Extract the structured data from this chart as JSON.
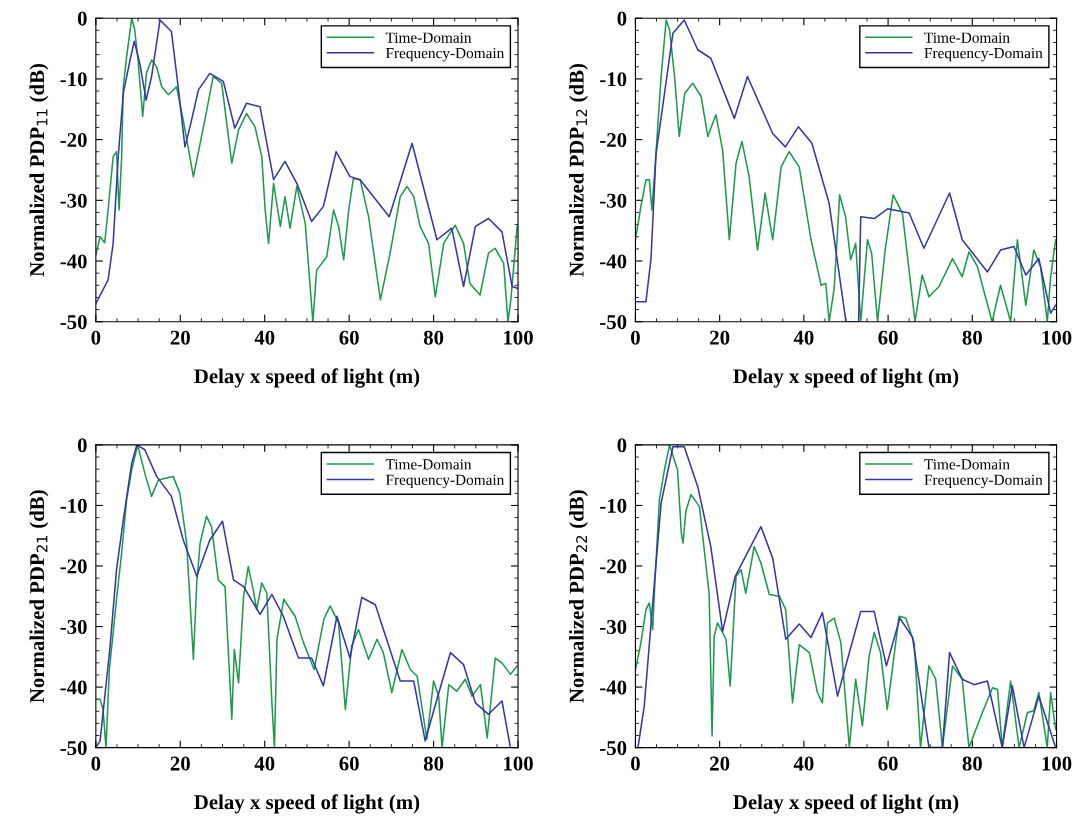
{
  "chart_data": [
    {
      "type": "line",
      "xlabel": "Delay x speed of light (m)",
      "ylabel": "Normalized PDP$_{11}$ (dB)",
      "xlim": [
        0,
        100
      ],
      "xticks": [
        0,
        20,
        40,
        60,
        80,
        100
      ],
      "ylim": [
        -50,
        0
      ],
      "yticks": [
        -50,
        -40,
        -30,
        -20,
        -10,
        0
      ],
      "legend": "top right",
      "grid": false,
      "series": [
        {
          "name": "Time-Domain",
          "color": "#1a9a4a",
          "x": [
            0,
            1,
            2.1,
            2.9,
            4.1,
            4.9,
            5.5,
            6.1,
            6.5,
            7.3,
            8.5,
            9.2,
            10,
            11.1,
            12,
            13.2,
            14.4,
            15.6,
            17.2,
            19.1,
            20.7,
            23.1,
            25.5,
            27.8,
            29.8,
            32.2,
            33.8,
            35.7,
            37.7,
            39.3,
            40.1,
            40.9,
            42.1,
            43.7,
            44.8,
            46,
            47.6,
            49.6,
            51.4,
            52.3,
            54.7,
            56.3,
            57.5,
            58.7,
            59.9,
            61,
            62.6,
            64.6,
            67.4,
            69.7,
            72.1,
            73.7,
            75.3,
            76.8,
            78.8,
            80.4,
            82.4,
            85.1,
            87.1,
            88.6,
            91,
            93,
            94.6,
            96.6,
            97.6,
            98.3,
            99.8
          ],
          "values": [
            -39,
            -36,
            -37,
            -31.6,
            -22.8,
            -22,
            -31.6,
            -23,
            -11.3,
            -6.3,
            0,
            -1.9,
            -6.9,
            -16.2,
            -9,
            -6.9,
            -8,
            -11.3,
            -12.6,
            -11.3,
            -16.8,
            -26.1,
            -17.9,
            -9.6,
            -10.7,
            -23.9,
            -18.4,
            -15.7,
            -17.9,
            -22.8,
            -31.6,
            -37.1,
            -27.2,
            -34.3,
            -29.4,
            -34.6,
            -27.7,
            -33.8,
            -50,
            -41.5,
            -39.3,
            -31.6,
            -34.3,
            -39.8,
            -31.6,
            -26.4,
            -26.6,
            -32.7,
            -46.4,
            -38.7,
            -29.4,
            -27.7,
            -29.4,
            -34.3,
            -37.1,
            -45.9,
            -37.1,
            -34.1,
            -37.1,
            -43.7,
            -45.6,
            -38.7,
            -37.9,
            -40.4,
            -50,
            -46.4,
            -34.3
          ]
        },
        {
          "name": "Frequency-Domain",
          "color": "#3535a5",
          "x": [
            0,
            2.9,
            4.1,
            5.3,
            6.5,
            8.1,
            9.1,
            10.4,
            11.9,
            13.2,
            15.2,
            17.9,
            19.5,
            21.1,
            22.3,
            24.3,
            27,
            30.2,
            32.9,
            35.7,
            38.9,
            42.1,
            44.8,
            47.6,
            51.1,
            53.9,
            56.9,
            60.2,
            62.6,
            69.5,
            74.9,
            80.8,
            84.3,
            87.1,
            89.9,
            93,
            96.2,
            98.6,
            99.9
          ],
          "values": [
            -47,
            -43.1,
            -37.1,
            -22.8,
            -12.4,
            -6.9,
            -3.8,
            -7.4,
            -13.5,
            -9.6,
            -0.3,
            -2.2,
            -11.3,
            -21.2,
            -17.9,
            -11.8,
            -9.1,
            -10.4,
            -18.1,
            -14,
            -14.6,
            -26.6,
            -23.6,
            -27.2,
            -33.5,
            -31,
            -22,
            -26.1,
            -26.6,
            -32.7,
            -20.6,
            -36.5,
            -34.6,
            -44.2,
            -34.3,
            -33,
            -35.2,
            -44.2,
            -44.5
          ]
        }
      ]
    },
    {
      "type": "line",
      "xlabel": "Delay x speed of light (m)",
      "ylabel": "Normalized PDP$_{12}$ (dB)",
      "xlim": [
        0,
        100
      ],
      "xticks": [
        0,
        20,
        40,
        60,
        80,
        100
      ],
      "ylim": [
        -50,
        0
      ],
      "yticks": [
        -50,
        -40,
        -30,
        -20,
        -10,
        0
      ],
      "legend": "top right",
      "grid": false,
      "series": [
        {
          "name": "Time-Domain",
          "color": "#1a9a4a",
          "x": [
            0,
            1.3,
            2.5,
            3.3,
            3.9,
            4.5,
            5.3,
            6.1,
            7.3,
            8.1,
            9.3,
            10.4,
            11.7,
            13.6,
            15.6,
            17.2,
            19.1,
            20.7,
            22.3,
            23.9,
            25.3,
            27,
            29,
            30.8,
            32.6,
            34.6,
            36.5,
            38.9,
            41.7,
            44.1,
            45.2,
            46,
            47.2,
            48.5,
            49.9,
            51.1,
            52.3,
            53.5,
            55.1,
            56.1,
            57.5,
            59.3,
            61.2,
            63.4,
            66.4,
            68.1,
            69.7,
            72.1,
            75.3,
            77.6,
            79.2,
            81.2,
            84.7,
            86.7,
            89.1,
            90.7,
            92.7,
            94.6,
            96.2,
            97.8,
            98.6,
            99.8
          ],
          "values": [
            -36.5,
            -31,
            -26.6,
            -26.6,
            -31.6,
            -26.1,
            -17.9,
            -9.6,
            -0.3,
            -1.9,
            -9.6,
            -19.5,
            -12.4,
            -10.7,
            -12.9,
            -19.5,
            -15.9,
            -21.7,
            -36.5,
            -23.9,
            -20.3,
            -26.1,
            -38.2,
            -28.8,
            -36.5,
            -24.5,
            -22,
            -24.5,
            -36.5,
            -44,
            -43.7,
            -50,
            -44.5,
            -29.1,
            -32.7,
            -39.8,
            -37.1,
            -50,
            -36.5,
            -38.7,
            -50,
            -38.2,
            -29.1,
            -32.1,
            -50,
            -42.3,
            -45.9,
            -44.2,
            -39.6,
            -42.6,
            -38.5,
            -40.9,
            -50,
            -44,
            -50,
            -36.5,
            -47.3,
            -38.2,
            -40.9,
            -50,
            -42.6,
            -36.5
          ]
        },
        {
          "name": "Frequency-Domain",
          "color": "#3535a5",
          "x": [
            0,
            2.5,
            3.7,
            4.9,
            8.9,
            11.6,
            14.8,
            17.9,
            23.5,
            26.6,
            32.6,
            35.6,
            38.7,
            41.9,
            46,
            50,
            53,
            53.5,
            56.7,
            59.9,
            65,
            68.5,
            74.6,
            77.6,
            83.6,
            86.7,
            89.9,
            92.7,
            95.8,
            98.6,
            99.8
          ],
          "values": [
            -46.7,
            -46.7,
            -39.6,
            -22.3,
            -2.5,
            -0.3,
            -5.2,
            -6.6,
            -16.5,
            -9.6,
            -19,
            -21.2,
            -17.9,
            -20.6,
            -30.5,
            -50,
            -50,
            -32.7,
            -33,
            -31.4,
            -32.1,
            -37.9,
            -28.8,
            -36.5,
            -41.8,
            -38.2,
            -37.6,
            -42.3,
            -39.6,
            -48.6,
            -47.3
          ]
        }
      ]
    },
    {
      "type": "line",
      "xlabel": "Delay x speed of light (m)",
      "ylabel": "Normalized PDP$_{21}$ (dB)",
      "xlim": [
        0,
        100
      ],
      "xticks": [
        0,
        20,
        40,
        60,
        80,
        100
      ],
      "ylim": [
        -50,
        0
      ],
      "yticks": [
        -50,
        -40,
        -30,
        -20,
        -10,
        0
      ],
      "legend": "top right",
      "grid": false,
      "series": [
        {
          "name": "Time-Domain",
          "color": "#1a9a4a",
          "x": [
            0,
            1,
            1.7,
            2.4,
            3.2,
            4.1,
            4.9,
            6.1,
            7.3,
            8.5,
            9.9,
            11.6,
            13.2,
            14.8,
            18.3,
            19.9,
            21.5,
            22.7,
            23.1,
            23.9,
            24.7,
            26.2,
            27.4,
            29,
            30.6,
            32.2,
            32.8,
            33.8,
            35,
            36.1,
            37.3,
            38.1,
            39.3,
            40.5,
            41.7,
            42.3,
            42.9,
            44.5,
            47.2,
            49.2,
            51.7,
            54,
            55.5,
            57.5,
            59.1,
            60.6,
            62.2,
            64.6,
            66.6,
            68.1,
            70.1,
            72.5,
            74.5,
            76.1,
            78.4,
            80,
            81.2,
            82,
            83.6,
            85.5,
            87.5,
            89.1,
            91.1,
            92.7,
            94.6,
            96.2,
            98.2,
            99.8
          ],
          "values": [
            -42,
            -42,
            -43.7,
            -50,
            -37.1,
            -31,
            -25.5,
            -17.9,
            -9,
            -4.1,
            0,
            -4.7,
            -8.5,
            -5.8,
            -5.2,
            -8,
            -16.2,
            -30.5,
            -35.4,
            -22.8,
            -16.2,
            -11.8,
            -13.5,
            -22.3,
            -23.4,
            -45.3,
            -33.8,
            -39.3,
            -25,
            -20.1,
            -24,
            -27.2,
            -22.8,
            -24.5,
            -42.6,
            -50,
            -32.1,
            -25.5,
            -28.3,
            -32.7,
            -37.1,
            -28.8,
            -26.6,
            -29.4,
            -43.7,
            -33.2,
            -30.5,
            -35.4,
            -32.1,
            -34.3,
            -40.9,
            -33.8,
            -37.1,
            -38.2,
            -48.6,
            -39,
            -41.5,
            -50,
            -39.6,
            -40.7,
            -38.7,
            -41.5,
            -39.6,
            -48.4,
            -35.2,
            -36,
            -37.9,
            -36.5
          ]
        },
        {
          "name": "Frequency-Domain",
          "color": "#3535a5",
          "x": [
            0,
            1,
            3.3,
            4.9,
            6.5,
            8.5,
            9.7,
            11.6,
            14.4,
            17.9,
            20.7,
            23.9,
            27,
            30,
            32.6,
            35,
            38.9,
            41.7,
            44.4,
            48,
            51.1,
            53.9,
            57.1,
            60.2,
            63,
            66.2,
            72.1,
            75.3,
            78,
            80.8,
            84,
            87.1,
            89.9,
            93,
            96.2,
            98.2
          ],
          "values": [
            -50,
            -48.9,
            -33.8,
            -20.6,
            -12.4,
            -3,
            0,
            -0.8,
            -5.2,
            -8.5,
            -15.7,
            -21.7,
            -15.7,
            -12.6,
            -22.3,
            -23.4,
            -28,
            -24.7,
            -28.3,
            -35.2,
            -35.2,
            -39.8,
            -28.3,
            -35.2,
            -25.2,
            -26.4,
            -39,
            -39,
            -48.9,
            -42,
            -34.3,
            -36.3,
            -42.6,
            -44.5,
            -42.3,
            -50
          ]
        }
      ]
    },
    {
      "type": "line",
      "xlabel": "Delay x speed of light (m)",
      "ylabel": "Normalized PDP$_{22}$ (dB)",
      "xlim": [
        0,
        100
      ],
      "xticks": [
        0,
        20,
        40,
        60,
        80,
        100
      ],
      "ylim": [
        -50,
        0
      ],
      "yticks": [
        -50,
        -40,
        -30,
        -20,
        -10,
        0
      ],
      "legend": "top right",
      "grid": false,
      "series": [
        {
          "name": "Time-Domain",
          "color": "#1a9a4a",
          "x": [
            0,
            1.3,
            2.5,
            3.3,
            4.1,
            4.7,
            5.7,
            6.9,
            8.1,
            10,
            10.9,
            11.3,
            12,
            13.2,
            15.2,
            17.5,
            18.2,
            18.7,
            19.5,
            21.5,
            22.5,
            23.9,
            25.1,
            26.2,
            28.2,
            29.8,
            31.8,
            34.2,
            35.7,
            37.3,
            38.9,
            41.3,
            43.2,
            44.4,
            45.6,
            47.2,
            48.8,
            50.8,
            52.3,
            53.9,
            55.5,
            56.7,
            58.2,
            59.8,
            62.6,
            64.2,
            66.2,
            67.7,
            69.7,
            71.3,
            72.9,
            75.3,
            77.6,
            79.2,
            82.4,
            84.8,
            86,
            87.1,
            89.1,
            91.1,
            93.1,
            94.6,
            95.8,
            97.8,
            98.6,
            99.8
          ],
          "values": [
            -37.1,
            -32.7,
            -27.2,
            -26.1,
            -30.5,
            -21.7,
            -9,
            -4.1,
            0,
            -4.1,
            -14.6,
            -16.2,
            -10.9,
            -8.2,
            -10.2,
            -24.5,
            -48.1,
            -31.6,
            -29.4,
            -32.1,
            -39.8,
            -21.7,
            -20.6,
            -24.5,
            -16.8,
            -19.5,
            -24.7,
            -25,
            -27.2,
            -42.6,
            -33,
            -34.3,
            -40.9,
            -42.6,
            -29.4,
            -28.6,
            -32.7,
            -50,
            -38.7,
            -46.4,
            -34.9,
            -31,
            -34.3,
            -43.7,
            -28.3,
            -28.6,
            -32.7,
            -50,
            -36.5,
            -38.7,
            -50,
            -36.5,
            -38.7,
            -50,
            -44.2,
            -40.1,
            -40.4,
            -50,
            -39,
            -50,
            -44.2,
            -43.9,
            -40.9,
            -50,
            -40.9,
            -47
          ]
        },
        {
          "name": "Frequency-Domain",
          "color": "#3535a5",
          "x": [
            0.6,
            2.1,
            4.5,
            6.1,
            8.9,
            11.6,
            14.8,
            17.9,
            20.7,
            23.7,
            29.8,
            32.6,
            35.7,
            38.9,
            41.7,
            44.4,
            48,
            50.8,
            53.5,
            56.7,
            59.6,
            62.8,
            65.8,
            69.7,
            72.9,
            74.6,
            77.6,
            80.4,
            83.6,
            87.1,
            89.5,
            92.3,
            95.8,
            99.8
          ],
          "values": [
            -50,
            -43.1,
            -22.8,
            -9.6,
            -0.3,
            -0.3,
            -6.9,
            -16.8,
            -30.8,
            -21.7,
            -13.5,
            -18.7,
            -32.1,
            -29.6,
            -31.8,
            -27.7,
            -41.5,
            -34.3,
            -27.5,
            -27.5,
            -36.5,
            -28.6,
            -31.8,
            -50,
            -50,
            -34.3,
            -38.7,
            -39.6,
            -39,
            -50,
            -39.8,
            -50,
            -41.5,
            -50
          ]
        }
      ]
    }
  ]
}
